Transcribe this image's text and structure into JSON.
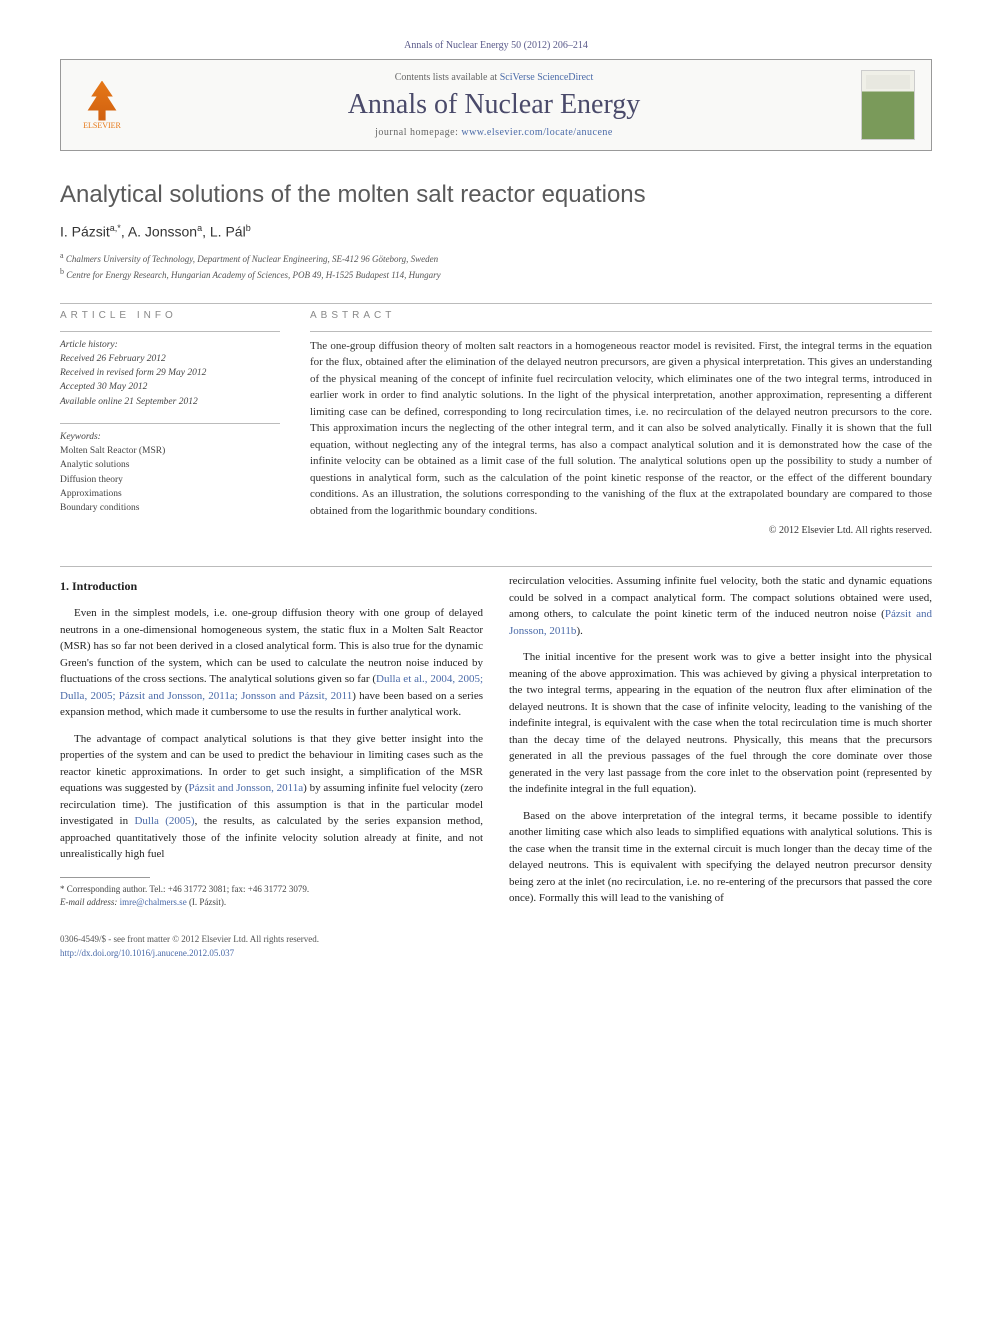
{
  "citation": "Annals of Nuclear Energy 50 (2012) 206–214",
  "header": {
    "publisher": "ELSEVIER",
    "contents_prefix": "Contents lists available at ",
    "contents_link": "SciVerse ScienceDirect",
    "journal": "Annals of Nuclear Energy",
    "homepage_prefix": "journal homepage: ",
    "homepage_url": "www.elsevier.com/locate/anucene"
  },
  "article": {
    "title": "Analytical solutions of the molten salt reactor equations",
    "authors_html": "I. Pázsit",
    "author1": "I. Pázsit",
    "author1_sup": "a,*",
    "author2": ", A. Jonsson",
    "author2_sup": "a",
    "author3": ", L. Pál",
    "author3_sup": "b",
    "affil_a_sup": "a",
    "affil_a": "Chalmers University of Technology, Department of Nuclear Engineering, SE-412 96 Göteborg, Sweden",
    "affil_b_sup": "b",
    "affil_b": "Centre for Energy Research, Hungarian Academy of Sciences, POB 49, H-1525 Budapest 114, Hungary"
  },
  "info": {
    "section_label": "ARTICLE INFO",
    "history_label": "Article history:",
    "received": "Received 26 February 2012",
    "revised": "Received in revised form 29 May 2012",
    "accepted": "Accepted 30 May 2012",
    "online": "Available online 21 September 2012",
    "keywords_label": "Keywords:",
    "kw1": "Molten Salt Reactor (MSR)",
    "kw2": "Analytic solutions",
    "kw3": "Diffusion theory",
    "kw4": "Approximations",
    "kw5": "Boundary conditions"
  },
  "abstract": {
    "section_label": "ABSTRACT",
    "text": "The one-group diffusion theory of molten salt reactors in a homogeneous reactor model is revisited. First, the integral terms in the equation for the flux, obtained after the elimination of the delayed neutron precursors, are given a physical interpretation. This gives an understanding of the physical meaning of the concept of infinite fuel recirculation velocity, which eliminates one of the two integral terms, introduced in earlier work in order to find analytic solutions. In the light of the physical interpretation, another approximation, representing a different limiting case can be defined, corresponding to long recirculation times, i.e. no recirculation of the delayed neutron precursors to the core. This approximation incurs the neglecting of the other integral term, and it can also be solved analytically. Finally it is shown that the full equation, without neglecting any of the integral terms, has also a compact analytical solution and it is demonstrated how the case of the infinite velocity can be obtained as a limit case of the full solution. The analytical solutions open up the possibility to study a number of questions in analytical form, such as the calculation of the point kinetic response of the reactor, or the effect of the different boundary conditions. As an illustration, the solutions corresponding to the vanishing of the flux at the extrapolated boundary are compared to those obtained from the logarithmic boundary conditions.",
    "copyright": "© 2012 Elsevier Ltd. All rights reserved."
  },
  "body": {
    "heading1": "1. Introduction",
    "p1a": "Even in the simplest models, i.e. one-group diffusion theory with one group of delayed neutrons in a one-dimensional homogeneous system, the static flux in a Molten Salt Reactor (MSR) has so far not been derived in a closed analytical form. This is also true for the dynamic Green's function of the system, which can be used to calculate the neutron noise induced by fluctuations of the cross sections. The analytical solutions given so far (",
    "p1_cite1": "Dulla et al., 2004, 2005; Dulla, 2005; Pázsit and Jonsson, 2011a; Jonsson and Pázsit, 2011",
    "p1b": ") have been based on a series expansion method, which made it cumbersome to use the results in further analytical work.",
    "p2a": "The advantage of compact analytical solutions is that they give better insight into the properties of the system and can be used to predict the behaviour in limiting cases such as the reactor kinetic approximations. In order to get such insight, a simplification of the MSR equations was suggested by (",
    "p2_cite1": "Pázsit and Jonsson, 2011a",
    "p2b": ") by assuming infinite fuel velocity (zero recirculation time). The justification of this assumption is that in the particular model investigated in ",
    "p2_cite2": "Dulla (2005)",
    "p2c": ", the results, as calculated by the series expansion method, approached quantitatively those of the infinite velocity solution already at finite, and not unrealistically high fuel",
    "p3a": "recirculation velocities. Assuming infinite fuel velocity, both the static and dynamic equations could be solved in a compact analytical form. The compact solutions obtained were used, among others, to calculate the point kinetic term of the induced neutron noise (",
    "p3_cite1": "Pázsit and Jonsson, 2011b",
    "p3b": ").",
    "p4": "The initial incentive for the present work was to give a better insight into the physical meaning of the above approximation. This was achieved by giving a physical interpretation to the two integral terms, appearing in the equation of the neutron flux after elimination of the delayed neutrons. It is shown that the case of infinite velocity, leading to the vanishing of the indefinite integral, is equivalent with the case when the total recirculation time is much shorter than the decay time of the delayed neutrons. Physically, this means that the precursors generated in all the previous passages of the fuel through the core dominate over those generated in the very last passage from the core inlet to the observation point (represented by the indefinite integral in the full equation).",
    "p5": "Based on the above interpretation of the integral terms, it became possible to identify another limiting case which also leads to simplified equations with analytical solutions. This is the case when the transit time in the external circuit is much longer than the decay time of the delayed neutrons. This is equivalent with specifying the delayed neutron precursor density being zero at the inlet (no recirculation, i.e. no re-entering of the precursors that passed the core once). Formally this will lead to the vanishing of"
  },
  "corresponding": {
    "marker": "*",
    "label": " Corresponding author. Tel.: +46 31772 3081; fax: +46 31772 3079.",
    "email_label": "E-mail address: ",
    "email": "imre@chalmers.se",
    "email_who": " (I. Pázsit)."
  },
  "footer": {
    "issn": "0306-4549/$ - see front matter © 2012 Elsevier Ltd. All rights reserved.",
    "doi_label": "",
    "doi": "http://dx.doi.org/10.1016/j.anucene.2012.05.037"
  },
  "colors": {
    "link": "#4a6aa8",
    "orange": "#e67817",
    "text": "#2a2a2a"
  }
}
